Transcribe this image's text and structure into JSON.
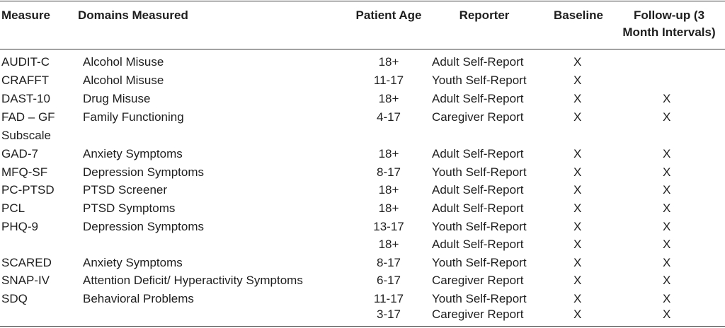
{
  "headers": {
    "measure": "Measure",
    "domains": "Domains Measured",
    "age": "Patient Age",
    "reporter": "Reporter",
    "baseline": "Baseline",
    "followup_line1": "Follow-up (3",
    "followup_line2": "Month Intervals)"
  },
  "rows": [
    {
      "measure": "AUDIT-C",
      "domain": "Alcohol Misuse",
      "age": "18+",
      "reporter": "Adult Self-Report",
      "baseline": "X",
      "followup": ""
    },
    {
      "measure": "CRAFFT",
      "domain": "Alcohol Misuse",
      "age": "11-17",
      "reporter": "Youth Self-Report",
      "baseline": "X",
      "followup": ""
    },
    {
      "measure": "DAST-10",
      "domain": "Drug Misuse",
      "age": "18+",
      "reporter": "Adult Self-Report",
      "baseline": "X",
      "followup": "X"
    },
    {
      "measure": "FAD – GF",
      "measure_line2": "Subscale",
      "domain": "Family Functioning",
      "age": "4-17",
      "reporter": "Caregiver Report",
      "baseline": "X",
      "followup": "X"
    },
    {
      "measure": "GAD-7",
      "domain": "Anxiety Symptoms",
      "age": "18+",
      "reporter": "Adult Self-Report",
      "baseline": "X",
      "followup": "X"
    },
    {
      "measure": "MFQ-SF",
      "domain": "Depression Symptoms",
      "age": "8-17",
      "reporter": "Youth Self-Report",
      "baseline": "X",
      "followup": "X"
    },
    {
      "measure": "PC-PTSD",
      "domain": "PTSD Screener",
      "age": "18+",
      "reporter": "Adult Self-Report",
      "baseline": "X",
      "followup": "X"
    },
    {
      "measure": "PCL",
      "domain": "PTSD Symptoms",
      "age": "18+",
      "reporter": "Adult Self-Report",
      "baseline": "X",
      "followup": "X"
    },
    {
      "measure": "PHQ-9",
      "domain": "Depression Symptoms",
      "age": "13-17",
      "reporter": "Youth Self-Report",
      "baseline": "X",
      "followup": "X"
    },
    {
      "measure": "",
      "domain": "",
      "age": "18+",
      "reporter": "Adult Self-Report",
      "baseline": "X",
      "followup": "X"
    },
    {
      "measure": "SCARED",
      "domain": "Anxiety Symptoms",
      "age": "8-17",
      "reporter": "Youth Self-Report",
      "baseline": "X",
      "followup": "X"
    },
    {
      "measure": "SNAP-IV",
      "domain": "Attention Deficit/ Hyperactivity Symptoms",
      "age": "6-17",
      "reporter": "Caregiver Report",
      "baseline": "X",
      "followup": "X"
    },
    {
      "measure": " SDQ",
      "domain": "Behavioral Problems",
      "age": "11-17",
      "reporter": "Youth Self-Report",
      "baseline": "X",
      "followup": "X"
    },
    {
      "measure": "",
      "domain": "",
      "age": "3-17",
      "reporter": "Caregiver Report",
      "baseline": "X",
      "followup": "X"
    }
  ]
}
